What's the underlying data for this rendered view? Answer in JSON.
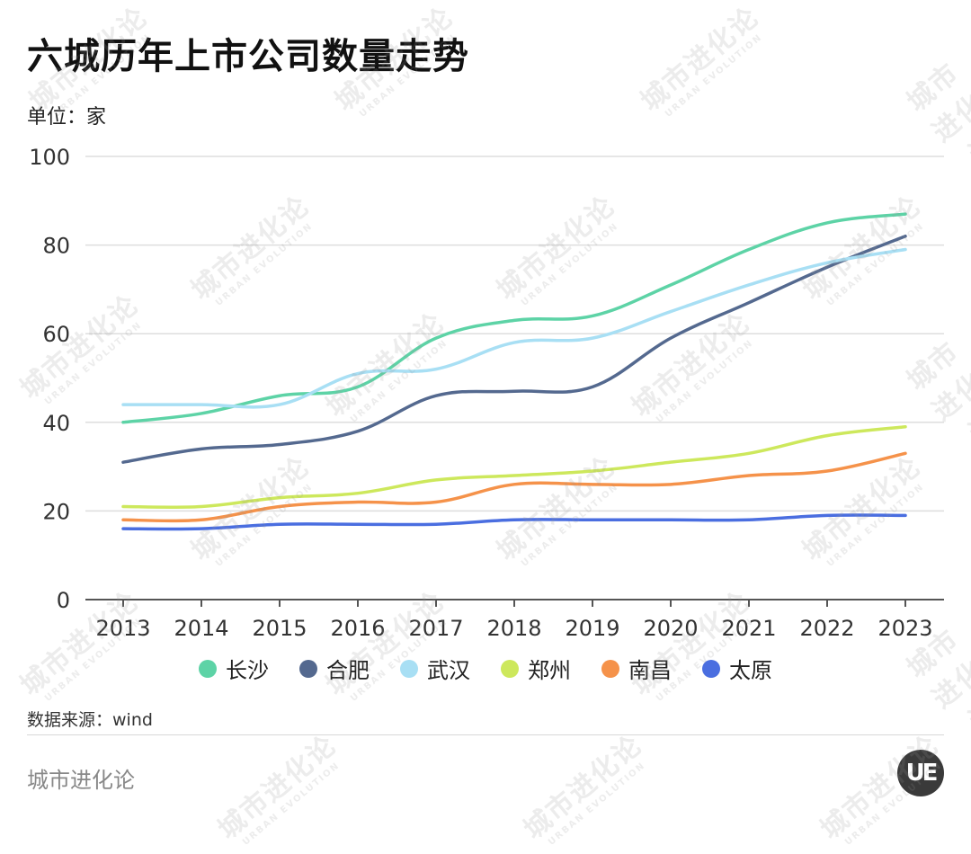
{
  "title": "六城历年上市公司数量走势",
  "unit_label": "单位：家",
  "source": "数据来源：wind",
  "footer_brand": "城市进化论",
  "logo_text": "UE",
  "watermark": {
    "cn": "城市进化论",
    "en": "URBAN EVOLUTION"
  },
  "chart_data": {
    "type": "line",
    "title": "六城历年上市公司数量走势",
    "ylabel": "单位：家",
    "xlabel": "",
    "ylim": [
      0,
      100
    ],
    "yticks": [
      0,
      20,
      40,
      60,
      80,
      100
    ],
    "grid": true,
    "legend_position": "bottom",
    "x": [
      "2013",
      "2014",
      "2015",
      "2016",
      "2017",
      "2018",
      "2019",
      "2020",
      "2021",
      "2022",
      "2023"
    ],
    "series": [
      {
        "name": "长沙",
        "color": "#5dd3a6",
        "values": [
          40,
          42,
          46,
          48,
          59,
          63,
          64,
          71,
          79,
          85,
          87
        ]
      },
      {
        "name": "合肥",
        "color": "#54698f",
        "values": [
          31,
          34,
          35,
          38,
          46,
          47,
          48,
          59,
          67,
          75,
          82
        ]
      },
      {
        "name": "武汉",
        "color": "#a8dff4",
        "values": [
          44,
          44,
          44,
          51,
          52,
          58,
          59,
          65,
          71,
          76,
          79
        ]
      },
      {
        "name": "郑州",
        "color": "#cde85c",
        "values": [
          21,
          21,
          23,
          24,
          27,
          28,
          29,
          31,
          33,
          37,
          39
        ]
      },
      {
        "name": "南昌",
        "color": "#f5924a",
        "values": [
          18,
          18,
          21,
          22,
          22,
          26,
          26,
          26,
          28,
          29,
          33
        ]
      },
      {
        "name": "太原",
        "color": "#4a6ee0",
        "values": [
          16,
          16,
          17,
          17,
          17,
          18,
          18,
          18,
          18,
          19,
          19
        ]
      }
    ]
  }
}
